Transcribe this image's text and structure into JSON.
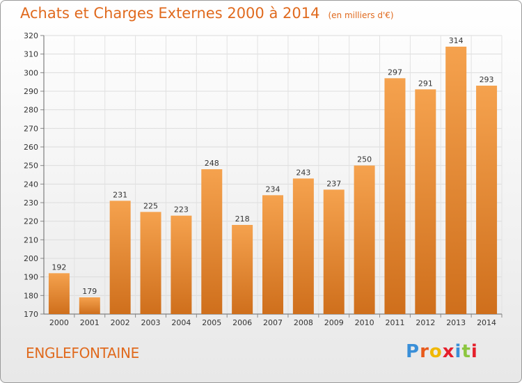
{
  "header": {
    "title": "Achats et Charges Externes 2000 à 2014",
    "subtitle": "(en milliers d'€)"
  },
  "footer": {
    "commune": "ENGLEFONTAINE",
    "logo_letters": [
      "P",
      "r",
      "o",
      "x",
      "i",
      "t",
      "i"
    ],
    "logo_colors": [
      "#3a8fd8",
      "#e85a1c",
      "#f0b800",
      "#e5202c",
      "#3a8fd8",
      "#8cc63f",
      "#e5202c"
    ]
  },
  "chart_data": {
    "type": "bar",
    "title": "Achats et Charges Externes 2000 à 2014",
    "subtitle": "(en milliers d'€)",
    "categories": [
      "2000",
      "2001",
      "2002",
      "2003",
      "2004",
      "2005",
      "2006",
      "2007",
      "2008",
      "2009",
      "2010",
      "2011",
      "2012",
      "2013",
      "2014"
    ],
    "values": [
      192,
      179,
      231,
      225,
      223,
      248,
      218,
      234,
      243,
      237,
      250,
      297,
      291,
      314,
      293
    ],
    "ylim": [
      170,
      320
    ],
    "yticks": [
      170,
      180,
      190,
      200,
      210,
      220,
      230,
      240,
      250,
      260,
      270,
      280,
      290,
      300,
      310,
      320
    ],
    "grid": true,
    "bar_color_top": "#f5a24e",
    "bar_color_bottom": "#cf6f1c"
  }
}
